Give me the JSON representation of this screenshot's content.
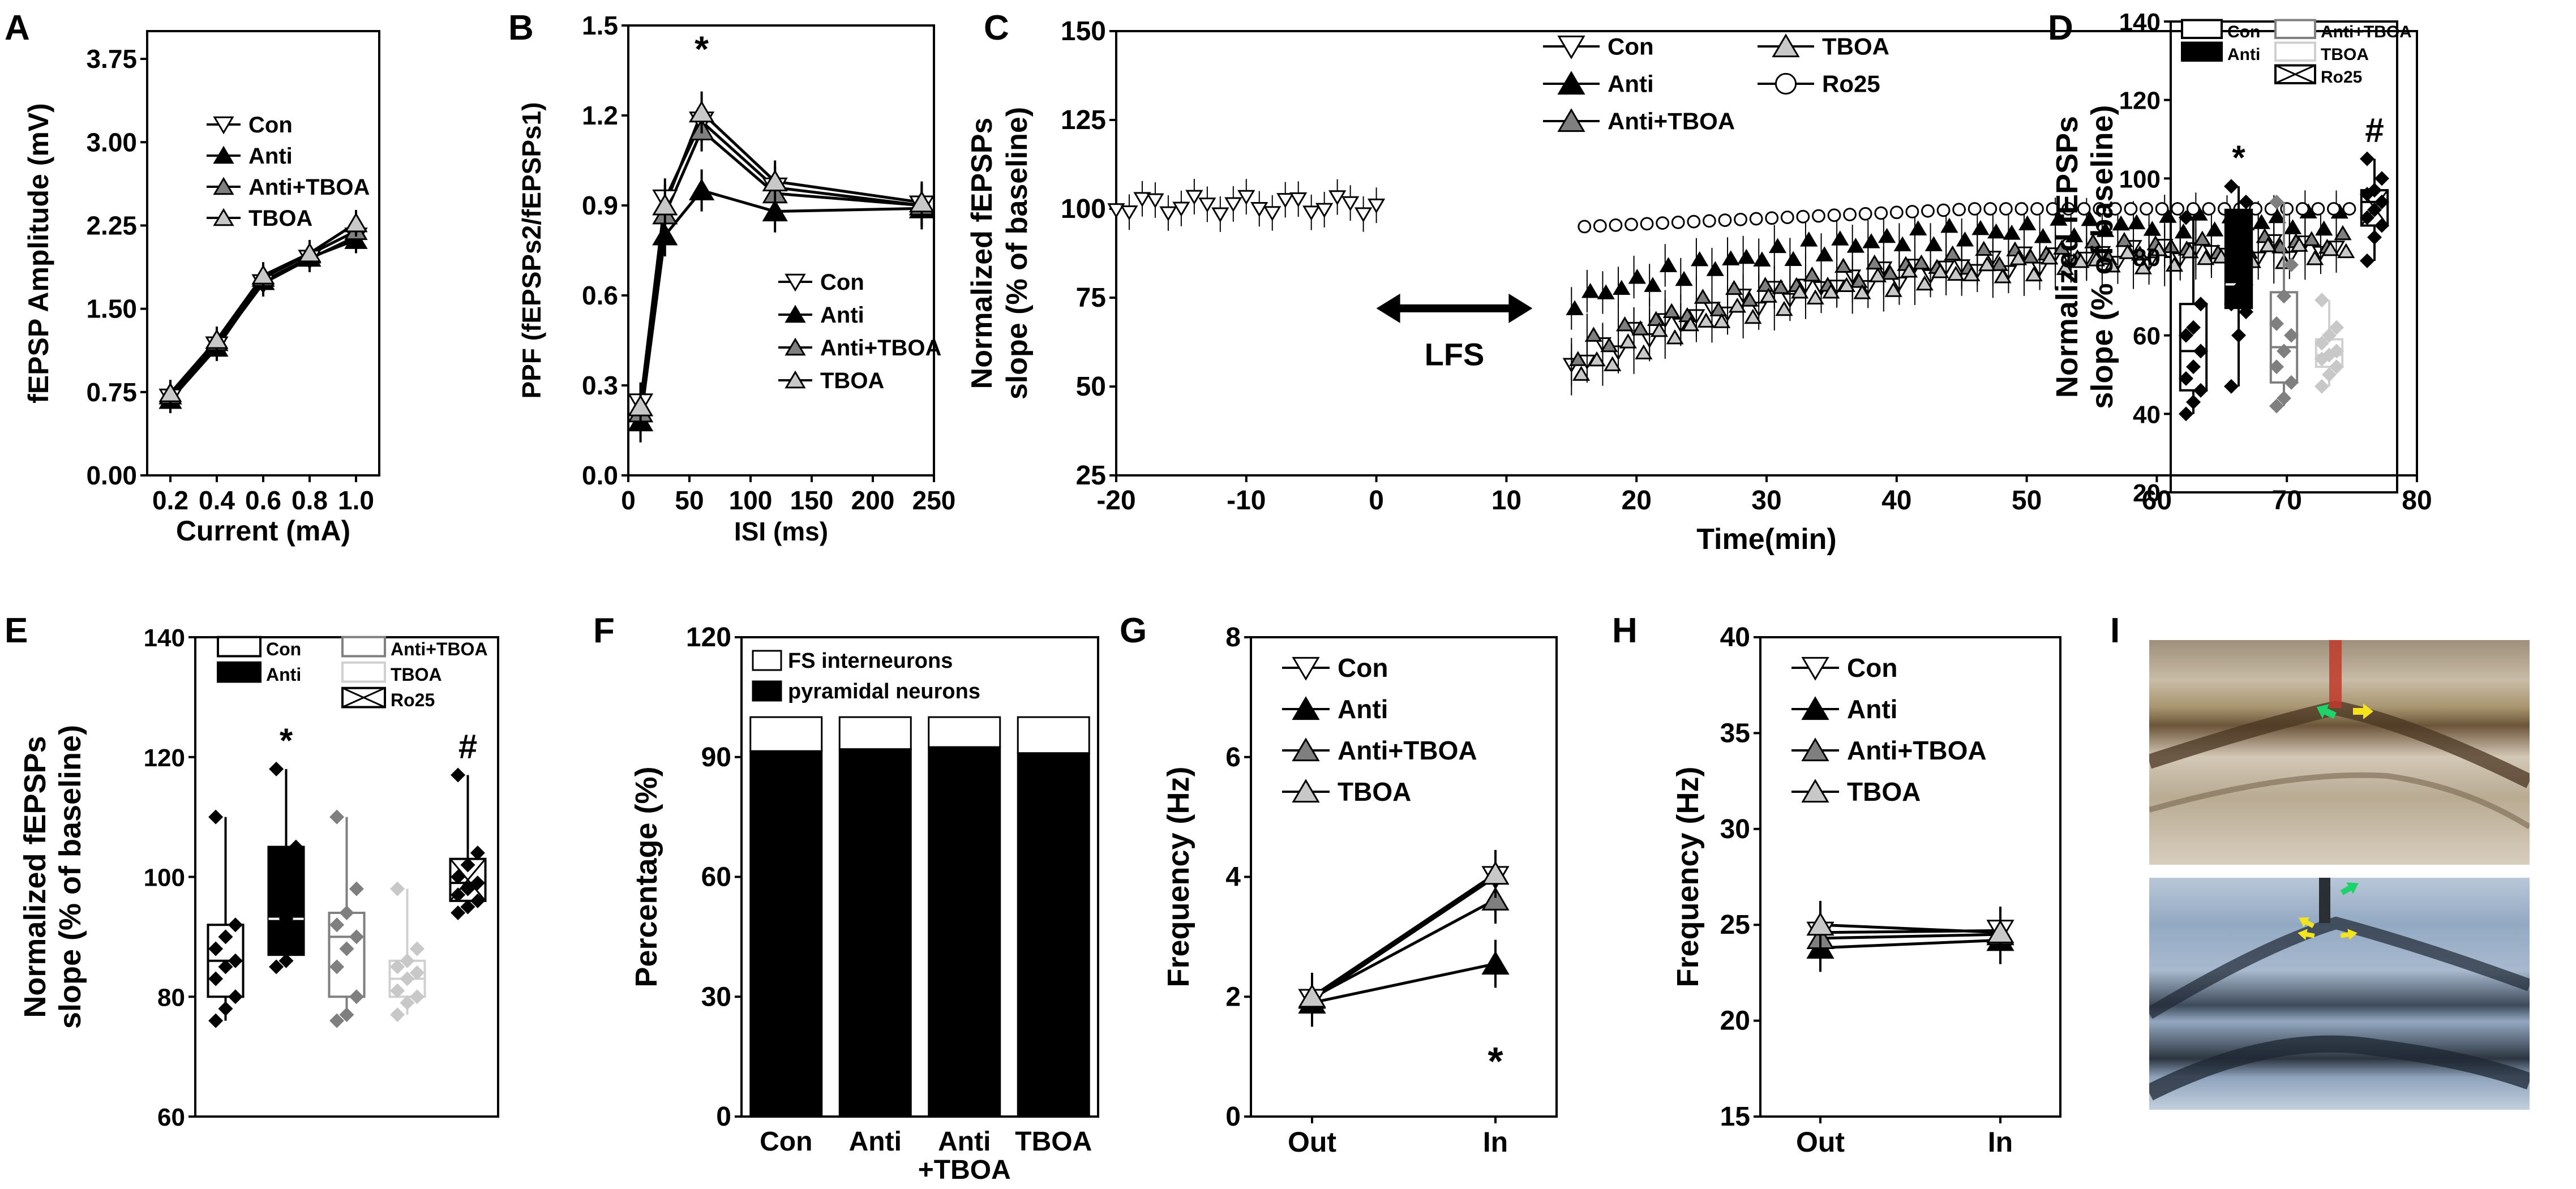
{
  "panels": {
    "A": "A",
    "B": "B",
    "C": "C",
    "D": "D",
    "E": "E",
    "F": "F",
    "G": "G",
    "H": "H",
    "I": "I"
  },
  "colors": {
    "con": "#ffffff",
    "anti": "#000000",
    "anti_tboa": "#7f7f7f",
    "tboa": "#c8c8c8",
    "ro25": "#ffffff",
    "sig_marker": "#000000",
    "green_arrow": "#1fd36b",
    "yellow_arrow": "#f4e41e",
    "electrode": "#c0392b"
  },
  "chart_data": [
    {
      "id": "A",
      "type": "line",
      "ylabel": "fEPSP Amplitude (mV)",
      "xlabel": "Current (mA)",
      "xlim": [
        0.1,
        1.1
      ],
      "ylim": [
        0,
        4
      ],
      "xticks": [
        "0.2",
        "0.4",
        "0.6",
        "0.8",
        "1.0"
      ],
      "yticks": [
        "0.00",
        "0.75",
        "1.50",
        "2.25",
        "3.00",
        "3.75"
      ],
      "x": [
        0.2,
        0.4,
        0.6,
        0.8,
        1.0
      ],
      "legend": [
        "Con",
        "Anti",
        "Anti+TBOA",
        "TBOA"
      ],
      "series": [
        {
          "name": "Con",
          "values": [
            0.7,
            1.17,
            1.73,
            1.95,
            2.15
          ]
        },
        {
          "name": "Anti",
          "values": [
            0.68,
            1.15,
            1.75,
            1.96,
            2.12
          ]
        },
        {
          "name": "Anti+TBOA",
          "values": [
            0.72,
            1.2,
            1.78,
            1.99,
            2.2
          ]
        },
        {
          "name": "TBOA",
          "values": [
            0.74,
            1.22,
            1.8,
            2.0,
            2.27
          ]
        }
      ]
    },
    {
      "id": "B",
      "type": "line",
      "ylabel": "PPF (fEPSPs2/fEPSPs1)",
      "xlabel": "ISI (ms)",
      "xlim": [
        0,
        250
      ],
      "ylim": [
        0,
        1.5
      ],
      "xticks": [
        "0",
        "50",
        "100",
        "150",
        "200",
        "250"
      ],
      "yticks": [
        "0.0",
        "0.3",
        "0.6",
        "0.9",
        "1.2",
        "1.5"
      ],
      "x": [
        10,
        30,
        60,
        120,
        240
      ],
      "annotation": "*",
      "legend": [
        "Con",
        "Anti",
        "Anti+TBOA",
        "TBOA"
      ],
      "series": [
        {
          "name": "Con",
          "values": [
            0.24,
            0.92,
            1.18,
            0.96,
            0.9
          ]
        },
        {
          "name": "Anti",
          "values": [
            0.18,
            0.8,
            0.95,
            0.88,
            0.89
          ]
        },
        {
          "name": "Anti+TBOA",
          "values": [
            0.21,
            0.87,
            1.15,
            0.94,
            0.9
          ]
        },
        {
          "name": "TBOA",
          "values": [
            0.23,
            0.9,
            1.21,
            0.98,
            0.91
          ]
        }
      ]
    },
    {
      "id": "C",
      "type": "scatter",
      "ylabel": "Normalized fEPSPs slope (% of baseline)",
      "ylabel_line1": "Normalized fEPSPs",
      "ylabel_line2": "slope (% of baseline)",
      "xlabel": "Time(min)",
      "xlim": [
        -20,
        80
      ],
      "ylim": [
        25,
        150
      ],
      "xticks": [
        "-20",
        "-10",
        "0",
        "10",
        "20",
        "30",
        "40",
        "50",
        "60",
        "70",
        "80"
      ],
      "yticks": [
        "25",
        "50",
        "75",
        "100",
        "125",
        "150"
      ],
      "annotation": "LFS",
      "lfs_span": [
        0,
        12
      ],
      "legend": [
        "Con",
        "Anti",
        "Anti+TBOA",
        "TBOA",
        "Ro25"
      ],
      "baseline": {
        "x_start": -20,
        "x_end": 0,
        "value": 101
      },
      "series": [
        {
          "name": "Con",
          "start": 56,
          "end": 89
        },
        {
          "name": "Anti",
          "start": 74,
          "end": 97
        },
        {
          "name": "Anti+TBOA",
          "start": 60,
          "end": 91
        },
        {
          "name": "TBOA",
          "start": 54,
          "end": 88
        },
        {
          "name": "Ro25",
          "start": 95,
          "end": 100
        }
      ],
      "post_x_range": [
        15,
        75
      ]
    },
    {
      "id": "D",
      "type": "box",
      "ylabel": "Normalized fEPSPs slope (% of baseline)",
      "ylabel_line1": "Normalized fEPSPs",
      "ylabel_line2": "slope (% of baseline)",
      "ylim": [
        20,
        140
      ],
      "yticks": [
        "20",
        "40",
        "60",
        "80",
        "100",
        "120",
        "140"
      ],
      "legend": [
        "Con",
        "Anti",
        "Anti+TBOA",
        "TBOA",
        "Ro25"
      ],
      "annotations": [
        {
          "group": "Anti",
          "text": "*"
        },
        {
          "group": "Ro25",
          "text": "#"
        }
      ],
      "groups": [
        {
          "name": "Con",
          "min": 40,
          "q1": 46,
          "median": 56,
          "q3": 68,
          "max": 90,
          "points": [
            40,
            43,
            46,
            49,
            52,
            56,
            60,
            62,
            68,
            90
          ]
        },
        {
          "name": "Anti",
          "min": 47,
          "q1": 67,
          "median": 73,
          "q3": 92,
          "max": 98,
          "points": [
            47,
            60,
            66,
            68,
            72,
            73,
            80,
            90,
            94,
            98
          ]
        },
        {
          "name": "Anti+TBOA",
          "min": 42,
          "q1": 48,
          "median": 57,
          "q3": 71,
          "max": 94,
          "points": [
            42,
            44,
            48,
            52,
            56,
            60,
            63,
            70,
            78,
            94
          ]
        },
        {
          "name": "TBOA",
          "min": 47,
          "q1": 52,
          "median": 55,
          "q3": 59,
          "max": 69,
          "points": [
            47,
            50,
            52,
            54,
            55,
            56,
            58,
            60,
            62,
            69
          ]
        },
        {
          "name": "Ro25",
          "min": 79,
          "q1": 88,
          "median": 94,
          "q3": 97,
          "max": 105,
          "points": [
            79,
            85,
            88,
            90,
            92,
            94,
            96,
            97,
            100,
            105
          ]
        }
      ]
    },
    {
      "id": "E",
      "type": "box",
      "ylabel": "Normalized fEPSPs slope (% of baseline)",
      "ylabel_line1": "Normalized fEPSPs",
      "ylabel_line2": "slope (% of baseline)",
      "ylim": [
        60,
        140
      ],
      "yticks": [
        "60",
        "80",
        "100",
        "120",
        "140"
      ],
      "legend": [
        "Con",
        "Anti",
        "Anti+TBOA",
        "TBOA",
        "Ro25"
      ],
      "annotations": [
        {
          "group": "Anti",
          "text": "*"
        },
        {
          "group": "Ro25",
          "text": "#"
        }
      ],
      "groups": [
        {
          "name": "Con",
          "min": 76,
          "q1": 80,
          "median": 86,
          "q3": 92,
          "max": 110,
          "points": [
            76,
            78,
            80,
            83,
            85,
            86,
            88,
            90,
            92,
            110
          ]
        },
        {
          "name": "Anti",
          "min": 85,
          "q1": 87,
          "median": 93,
          "q3": 105,
          "max": 118,
          "points": [
            85,
            86,
            88,
            90,
            93,
            95,
            99,
            104,
            105,
            118
          ]
        },
        {
          "name": "Anti+TBOA",
          "min": 76,
          "q1": 80,
          "median": 90,
          "q3": 94,
          "max": 110,
          "points": [
            76,
            77,
            80,
            85,
            88,
            90,
            92,
            94,
            98,
            110
          ]
        },
        {
          "name": "TBOA",
          "min": 77,
          "q1": 80,
          "median": 83,
          "q3": 86,
          "max": 98,
          "points": [
            77,
            79,
            80,
            81,
            83,
            84,
            85,
            86,
            88,
            98
          ]
        },
        {
          "name": "Ro25",
          "min": 94,
          "q1": 96,
          "median": 99,
          "q3": 103,
          "max": 117,
          "points": [
            94,
            95,
            96,
            97,
            98,
            99,
            100,
            102,
            104,
            117
          ]
        }
      ]
    },
    {
      "id": "F",
      "type": "bar",
      "ylabel": "Percentage (%)",
      "xlabel": "",
      "ylim": [
        0,
        120
      ],
      "yticks": [
        "0",
        "30",
        "60",
        "90",
        "120"
      ],
      "categories": [
        "Con",
        "Anti",
        "Anti +TBOA",
        "TBOA"
      ],
      "category_lines": [
        [
          "Con"
        ],
        [
          "Anti"
        ],
        [
          "Anti",
          "+TBOA"
        ],
        [
          "TBOA"
        ]
      ],
      "legend": [
        "FS interneurons",
        "pyramidal neurons"
      ],
      "series": [
        {
          "name": "pyramidal neurons",
          "values": [
            91.5,
            92,
            92.5,
            91
          ]
        },
        {
          "name": "FS interneurons",
          "values": [
            8.5,
            8,
            7.5,
            9
          ]
        }
      ]
    },
    {
      "id": "G",
      "type": "line",
      "ylabel": "Frequency (Hz)",
      "xlabel": "",
      "ylim": [
        0,
        8
      ],
      "yticks": [
        "0",
        "2",
        "4",
        "6",
        "8"
      ],
      "categories": [
        "Out",
        "In"
      ],
      "annotation": "*",
      "legend": [
        "Con",
        "Anti",
        "Anti+TBOA",
        "TBOA"
      ],
      "series": [
        {
          "name": "Con",
          "values": [
            1.95,
            4.0
          ]
        },
        {
          "name": "Anti",
          "values": [
            1.9,
            2.55
          ]
        },
        {
          "name": "Anti+TBOA",
          "values": [
            1.98,
            3.62
          ]
        },
        {
          "name": "TBOA",
          "values": [
            2.0,
            4.05
          ]
        }
      ]
    },
    {
      "id": "H",
      "type": "line",
      "ylabel": "Frequency (Hz)",
      "xlabel": "",
      "ylim": [
        15,
        40
      ],
      "yticks": [
        "15",
        "20",
        "25",
        "30",
        "35",
        "40"
      ],
      "categories": [
        "Out",
        "In"
      ],
      "legend": [
        "Con",
        "Anti",
        "Anti+TBOA",
        "TBOA"
      ],
      "series": [
        {
          "name": "Con",
          "values": [
            24.6,
            24.7
          ]
        },
        {
          "name": "Anti",
          "values": [
            23.8,
            24.2
          ]
        },
        {
          "name": "Anti+TBOA",
          "values": [
            24.3,
            24.5
          ]
        },
        {
          "name": "TBOA",
          "values": [
            25.0,
            24.6
          ]
        }
      ]
    }
  ]
}
